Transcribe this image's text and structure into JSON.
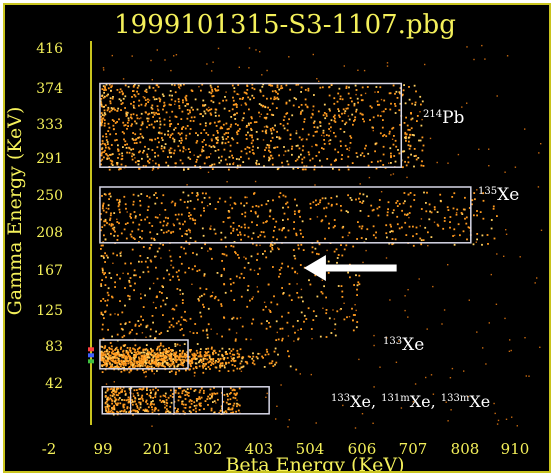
{
  "chart_data": {
    "type": "scatter",
    "title": "1999101315-S3-1107.pbg",
    "xlabel": "Beta Energy (KeV)",
    "ylabel": "Gamma Energy (KeV)",
    "x_ticks": [
      "-2",
      "99",
      "201",
      "302",
      "403",
      "504",
      "606",
      "707",
      "808",
      "910"
    ],
    "y_ticks": [
      "416",
      "374",
      "333",
      "291",
      "250",
      "208",
      "167",
      "125",
      "83",
      "42"
    ],
    "xlim": [
      -2,
      960
    ],
    "ylim": [
      0,
      430
    ],
    "grid": false,
    "clusters": [
      {
        "label_super": "214",
        "label_text": "Pb",
        "x_range": [
          0,
          700
        ],
        "y_range": [
          290,
          385
        ],
        "density": 1150
      },
      {
        "label_super": "135",
        "label_text": "Xe",
        "x_range": [
          0,
          860
        ],
        "y_range": [
          205,
          265
        ],
        "density": 520
      },
      {
        "label_super": "",
        "label_text": "",
        "x_range": [
          0,
          560
        ],
        "y_range": [
          100,
          205
        ],
        "density": 420
      },
      {
        "label_super": "133",
        "label_text": "Xe",
        "x_range": [
          0,
          480
        ],
        "y_range": [
          60,
          100
        ],
        "density": 900
      },
      {
        "label_super": "",
        "label_text": "",
        "x_range": [
          10,
          300
        ],
        "y_range": [
          18,
          48
        ],
        "density": 400
      }
    ],
    "regions": [
      {
        "x": [
          0,
          650
        ],
        "y": [
          292,
          385
        ]
      },
      {
        "x": [
          0,
          800
        ],
        "y": [
          208,
          270
        ]
      },
      {
        "x": [
          0,
          190
        ],
        "y": [
          68,
          100
        ]
      },
      {
        "x": [
          5,
          365
        ],
        "y": [
          18,
          48
        ]
      }
    ],
    "bottom_label": {
      "parts": [
        {
          "sup": "133",
          "text": "Xe, "
        },
        {
          "sup": "131m",
          "text": "Xe, "
        },
        {
          "sup": "133m",
          "text": "Xe"
        }
      ]
    },
    "arrow": {
      "from": [
        640,
        180
      ],
      "to": [
        440,
        180
      ]
    },
    "colors": {
      "point": "#ff9a1f",
      "point_bright": "#ffd060",
      "region": "#d8d8e8",
      "text": "#f4f05a",
      "label": "#ffffff",
      "frame": "#c9c41e"
    }
  }
}
